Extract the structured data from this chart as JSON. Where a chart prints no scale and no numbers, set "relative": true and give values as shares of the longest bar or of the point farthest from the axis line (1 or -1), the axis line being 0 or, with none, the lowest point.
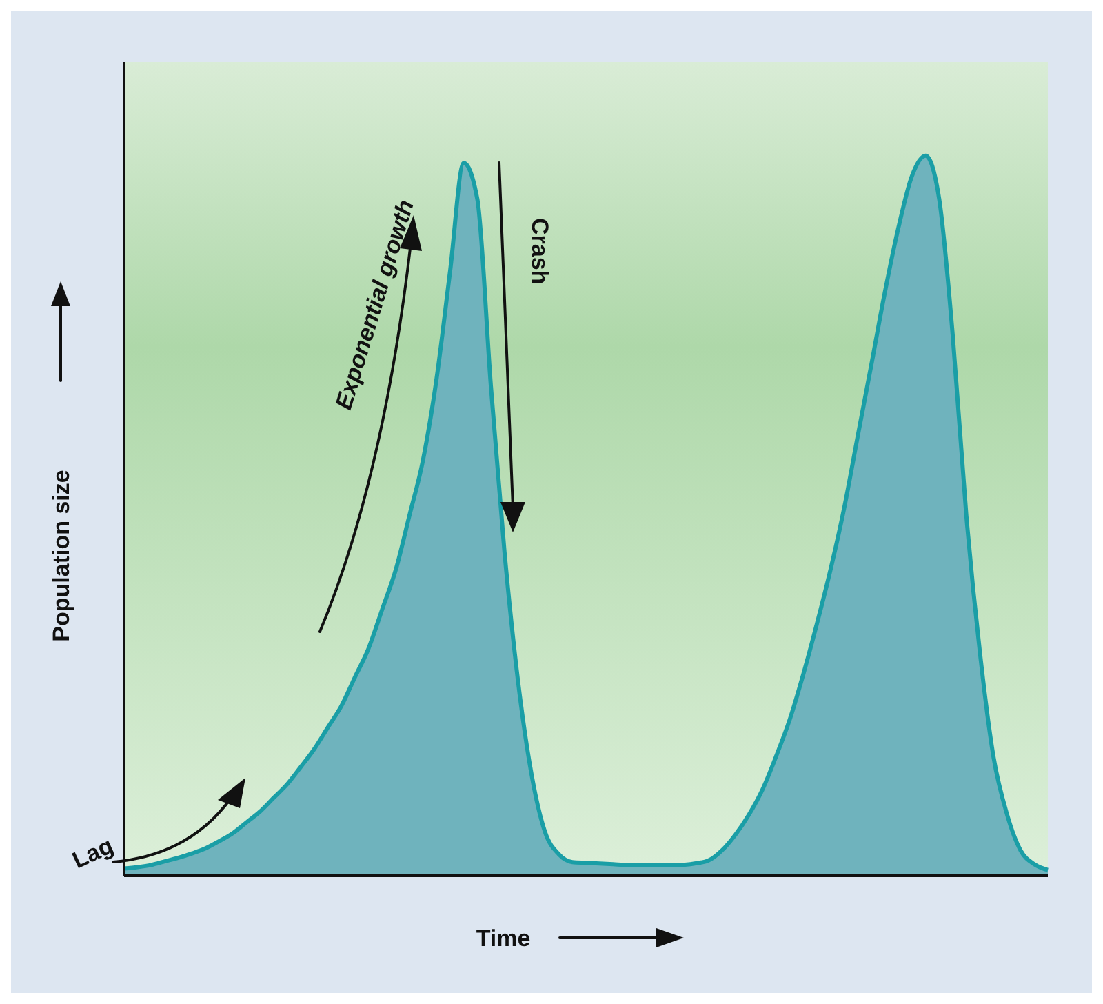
{
  "chart_data": {
    "type": "area",
    "relative": true,
    "xlabel": "Time",
    "ylabel": "Population size",
    "grid": false,
    "categories": [
      null,
      null,
      null,
      null,
      null,
      null,
      null,
      null,
      null,
      null,
      null,
      null,
      null,
      null,
      null,
      null,
      null,
      null,
      null,
      null,
      null,
      null,
      null,
      null,
      null,
      null,
      null,
      null,
      null,
      null,
      null,
      null,
      null,
      null,
      null,
      null,
      null,
      null,
      null,
      null,
      null,
      null,
      null,
      null,
      null,
      null,
      null,
      null,
      null,
      null,
      null,
      null,
      null,
      null,
      null,
      null,
      null,
      null,
      null,
      null,
      null,
      null,
      null,
      null,
      null,
      null,
      null,
      null,
      null
    ],
    "series": [
      {
        "color": "#1a9ea6",
        "values": [
          0.01,
          0.012,
          0.015,
          0.02,
          0.025,
          0.031,
          0.038,
          0.048,
          0.059,
          0.074,
          0.089,
          0.108,
          0.127,
          0.151,
          0.176,
          0.206,
          0.236,
          0.276,
          0.316,
          0.37,
          0.425,
          0.5,
          0.577,
          0.69,
          0.84,
          0.99,
          0.94,
          0.68,
          0.45,
          0.27,
          0.14,
          0.06,
          0.03,
          0.019,
          0.018,
          0.017,
          0.016,
          0.015,
          0.015,
          0.015,
          0.015,
          0.015,
          0.017,
          0.021,
          0.035,
          0.057,
          0.085,
          0.12,
          0.166,
          0.217,
          0.28,
          0.35,
          0.425,
          0.51,
          0.61,
          0.709,
          0.81,
          0.9,
          0.972,
          1,
          0.94,
          0.75,
          0.5,
          0.31,
          0.165,
          0.085,
          0.035,
          0.016,
          0.008
        ]
      }
    ],
    "annotations": [
      "Lag",
      "Exponential growth",
      "Crash"
    ]
  }
}
